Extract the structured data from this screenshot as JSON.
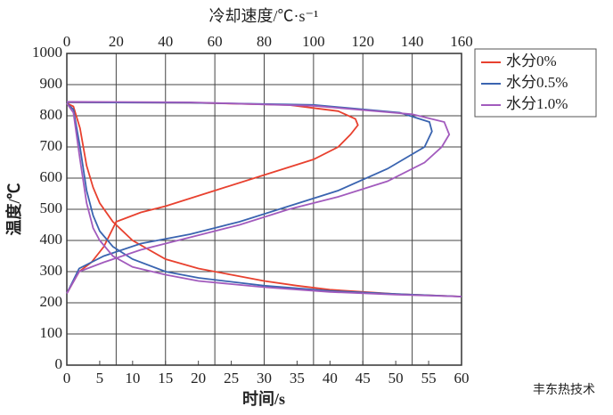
{
  "chart_data": {
    "type": "line",
    "xlabel": "时间/s",
    "ylabel": "温度/℃",
    "x2label": "冷却速度/℃·s⁻¹",
    "xlim": [
      0,
      60
    ],
    "xticks": [
      0,
      5,
      10,
      15,
      20,
      25,
      30,
      35,
      40,
      45,
      50,
      55,
      60
    ],
    "x2lim": [
      0,
      160
    ],
    "x2ticks": [
      0,
      20,
      40,
      60,
      80,
      100,
      120,
      140,
      160
    ],
    "ylim": [
      0,
      1000
    ],
    "yticks": [
      0,
      100,
      200,
      300,
      400,
      500,
      600,
      700,
      800,
      900,
      1000
    ],
    "grid": true,
    "legend": "outside-right",
    "watermark": "丰东热技术",
    "series": [
      {
        "name": "水分0%",
        "color": "#e8412f",
        "x": [
          0,
          1,
          2,
          3,
          4,
          5,
          7,
          10,
          15,
          20,
          25,
          30,
          35,
          40,
          50,
          60
        ],
        "values": [
          840,
          830,
          760,
          640,
          570,
          520,
          460,
          400,
          340,
          310,
          290,
          270,
          255,
          242,
          228,
          220
        ],
        "x2": [
          0,
          5,
          10,
          15,
          20,
          30,
          40,
          60,
          80,
          100,
          110,
          115,
          118,
          117,
          110,
          90,
          50,
          0
        ],
        "values2": [
          230,
          300,
          330,
          380,
          460,
          490,
          510,
          560,
          610,
          660,
          700,
          740,
          770,
          790,
          815,
          835,
          842,
          843
        ]
      },
      {
        "name": "水分0.5%",
        "color": "#3a64b0",
        "x": [
          0,
          1,
          2,
          3,
          4,
          5,
          7,
          10,
          15,
          20,
          30,
          40,
          50,
          60
        ],
        "values": [
          840,
          820,
          700,
          560,
          480,
          430,
          380,
          340,
          300,
          280,
          255,
          238,
          228,
          220
        ],
        "x2": [
          0,
          5,
          15,
          30,
          50,
          70,
          90,
          110,
          130,
          145,
          148,
          147,
          135,
          100,
          50,
          0
        ],
        "values2": [
          230,
          310,
          350,
          390,
          420,
          460,
          510,
          560,
          630,
          700,
          750,
          780,
          810,
          835,
          842,
          843
        ]
      },
      {
        "name": "水分1.0%",
        "color": "#a25bbd",
        "x": [
          0,
          1,
          2,
          3,
          4,
          5,
          7,
          10,
          15,
          20,
          30,
          40,
          50,
          60
        ],
        "values": [
          840,
          810,
          660,
          520,
          440,
          400,
          350,
          315,
          290,
          270,
          250,
          235,
          226,
          220
        ],
        "x2": [
          0,
          5,
          15,
          30,
          50,
          70,
          90,
          110,
          130,
          145,
          152,
          155,
          153,
          140,
          100,
          50,
          0
        ],
        "values2": [
          230,
          300,
          330,
          370,
          410,
          450,
          500,
          540,
          590,
          650,
          700,
          740,
          780,
          805,
          832,
          843,
          845
        ]
      }
    ]
  }
}
